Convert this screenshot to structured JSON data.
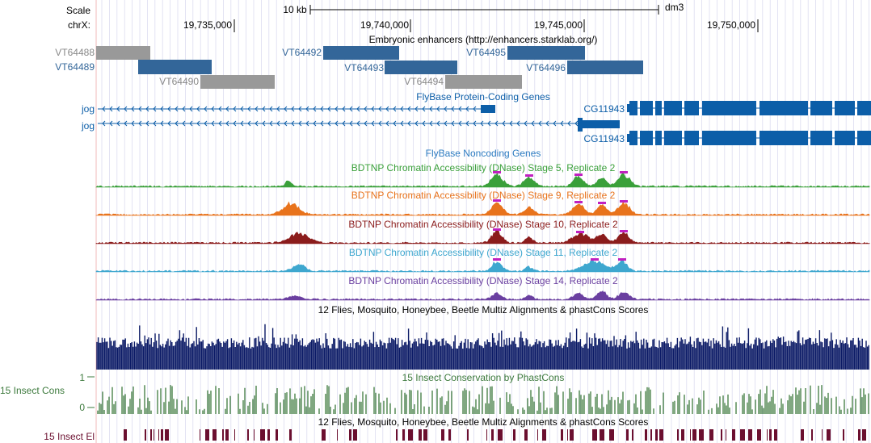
{
  "ruler": {
    "scale_label": "Scale",
    "chrom_label": "chrX:",
    "scale_bar_label": "10 kb",
    "assembly": "dm3",
    "positions": [
      "19,735,000",
      "19,740,000",
      "19,745,000",
      "19,750,000"
    ]
  },
  "enhancers": {
    "title": "Embryonic enhancers (http://enhancers.starklab.org/)",
    "items": [
      {
        "label": "VT64488",
        "color": "#999999"
      },
      {
        "label": "VT64489",
        "color": "#336699"
      },
      {
        "label": "VT64490",
        "color": "#999999"
      },
      {
        "label": "VT64492",
        "color": "#336699"
      },
      {
        "label": "VT64493",
        "color": "#336699"
      },
      {
        "label": "VT64494",
        "color": "#999999"
      },
      {
        "label": "VT64495",
        "color": "#336699"
      },
      {
        "label": "VT64496",
        "color": "#336699"
      }
    ]
  },
  "genes": {
    "title": "FlyBase Protein-Coding Genes",
    "color": "#0c5ea8",
    "left_gene_labels": [
      "jog",
      "jog"
    ],
    "right_gene_labels": [
      "CG11943",
      "CG11943"
    ]
  },
  "noncoding": {
    "title": "FlyBase Noncoding Genes",
    "color": "#2c7bc1"
  },
  "dnase_tracks": [
    {
      "title": "BDTNP Chromatin Accessibility (DNase) Stage 5, Replicate 2",
      "color": "#3aa03a"
    },
    {
      "title": "BDTNP Chromatin Accessibility (DNase) Stage 9, Replicate 2",
      "color": "#e8731c"
    },
    {
      "title": "BDTNP Chromatin Accessibility (DNase) Stage 10, Replicate 2",
      "color": "#8b1c1c"
    },
    {
      "title": "BDTNP Chromatin Accessibility (DNase) Stage 11, Replicate 2",
      "color": "#3ea7cf"
    },
    {
      "title": "BDTNP Chromatin Accessibility (DNase) Stage 14, Replicate 2",
      "color": "#6a3fa0"
    }
  ],
  "multiz": {
    "title": "12 Flies, Mosquito, Honeybee, Beetle Multiz Alignments & phastCons Scores",
    "color": "#0b1a66"
  },
  "phastcons": {
    "title": "15 Insect Conservation by PhastCons",
    "side_label": "15 Insect Cons",
    "axis_max": "1",
    "axis_min": "0",
    "color": "#3d7a3d"
  },
  "elements": {
    "title": "12 Flies, Mosquito, Honeybee, Beetle Multiz Alignments & phastCons Scores",
    "side_label": "15 Insect El",
    "color": "#6b0f2f"
  }
}
